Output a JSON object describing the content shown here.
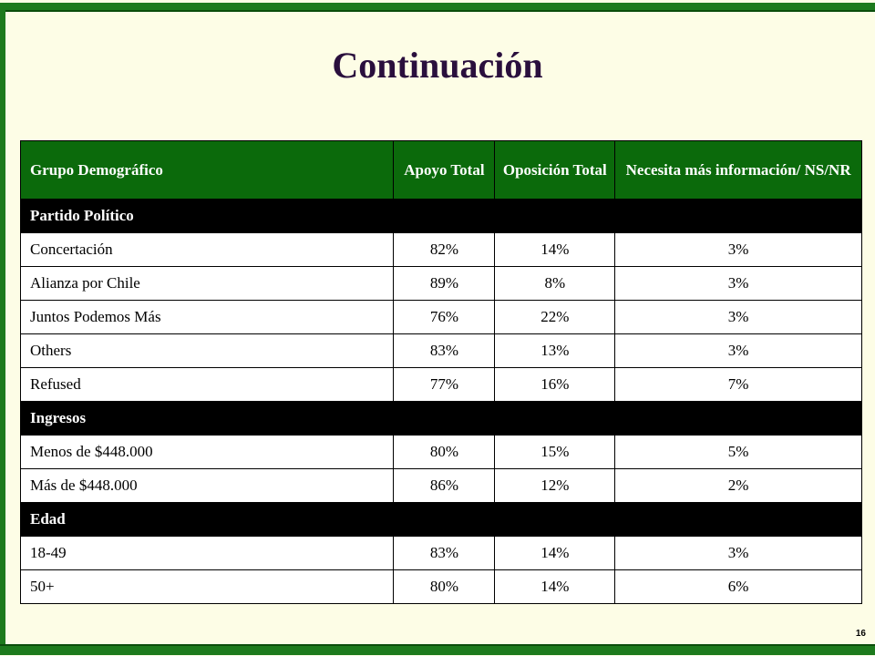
{
  "slide": {
    "title": "Continuación",
    "page_number": "16"
  },
  "table": {
    "headers": [
      "Grupo Demográfico",
      "Apoyo Total",
      "Oposición Total",
      "Necesita más información/ NS/NR"
    ],
    "sections": [
      {
        "title": "Partido Político",
        "rows": [
          [
            "Concertación",
            "82%",
            "14%",
            "3%"
          ],
          [
            "Alianza por Chile",
            "89%",
            "8%",
            "3%"
          ],
          [
            "Juntos Podemos Más",
            "76%",
            "22%",
            "3%"
          ],
          [
            "Others",
            "83%",
            "13%",
            "3%"
          ],
          [
            "Refused",
            "77%",
            "16%",
            "7%"
          ]
        ]
      },
      {
        "title": "Ingresos",
        "rows": [
          [
            "Menos de $448.000",
            "80%",
            "15%",
            "5%"
          ],
          [
            "Más de $448.000",
            "86%",
            "12%",
            "2%"
          ]
        ]
      },
      {
        "title": "Edad",
        "rows": [
          [
            "18-49",
            "83%",
            "14%",
            "3%"
          ],
          [
            "50+",
            "80%",
            "14%",
            "6%"
          ]
        ]
      }
    ]
  },
  "colors": {
    "frame": "#1d7a1d",
    "header_bg": "#0b6a0b",
    "section_bg": "#000000",
    "title": "#2a0f3d",
    "background": "#fdfde6"
  }
}
